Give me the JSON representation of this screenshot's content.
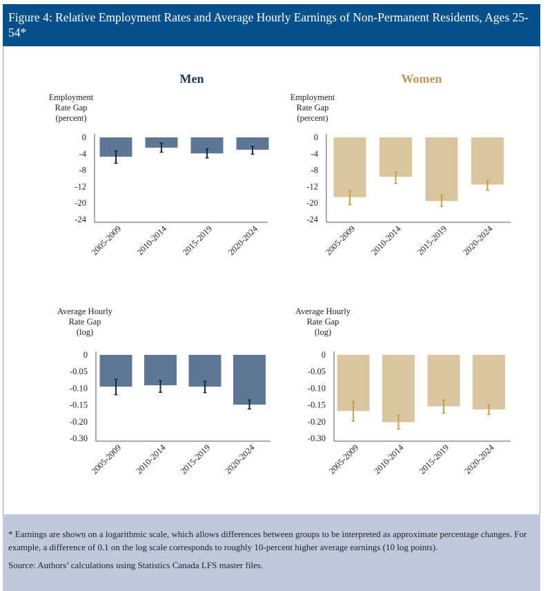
{
  "header": {
    "title": "Figure 4: Relative Employment Rates and Average Hourly Earnings of Non-Permanent Residents, Ages 25-54*"
  },
  "columns": {
    "men": "Men",
    "women": "Women"
  },
  "colors": {
    "header": "#04508a",
    "men_bar": "#5f7696",
    "men_err": "#0d2a4f",
    "women_bar": "#d9c69e",
    "women_err": "#c8a04a",
    "men_title": "#1a3358",
    "women_title": "#b8965a",
    "footer": "#c0c9db"
  },
  "chart_data": [
    {
      "id": "men_emp",
      "type": "bar",
      "title": "Men",
      "ylabel": [
        "Employment",
        "Rate Gap",
        "(percent)"
      ],
      "yticks": [
        "0",
        "-4",
        "-8",
        "-12",
        "-20",
        "-24"
      ],
      "ytick_values": [
        0,
        -4,
        -8,
        -12,
        -20,
        -24
      ],
      "categories": [
        "2005-2009",
        "2010-2014",
        "2015-2019",
        "2020-2024"
      ],
      "values": [
        -4.7,
        -2.5,
        -3.9,
        -3.0
      ],
      "error_low": [
        -6.3,
        -3.6,
        -5.0,
        -4.1
      ],
      "error_high": [
        -3.3,
        -1.4,
        -2.8,
        -2.2
      ]
    },
    {
      "id": "women_emp",
      "type": "bar",
      "title": "Women",
      "ylabel": [
        "Employment",
        "Rate Gap",
        "(percent)"
      ],
      "yticks": [
        "0",
        "-4",
        "-8",
        "-12",
        "-20",
        "-24"
      ],
      "ytick_values": [
        0,
        -4,
        -8,
        -12,
        -20,
        -24
      ],
      "categories": [
        "2005-2009",
        "2010-2014",
        "2015-2019",
        "2020-2024"
      ],
      "values": [
        -17.1,
        -9.6,
        -19.0,
        -11.5
      ],
      "error_low": [
        -20.4,
        -11.2,
        -20.8,
        -13.7
      ],
      "error_high": [
        -13.9,
        -8.5,
        -16.1,
        -10.5
      ]
    },
    {
      "id": "men_earn",
      "type": "bar",
      "title": "Men",
      "ylabel": [
        "Average Hourly",
        "Rate Gap",
        "(log)"
      ],
      "yticks": [
        "0",
        "-0.05",
        "-0.10",
        "-0.15",
        "-0.20",
        "-0.30"
      ],
      "ytick_values": [
        0,
        -0.05,
        -0.1,
        -0.15,
        -0.2,
        -0.3
      ],
      "categories": [
        "2005-2009",
        "2010-2014",
        "2015-2019",
        "2020-2024"
      ],
      "values": [
        -0.095,
        -0.091,
        -0.095,
        -0.149
      ],
      "error_low": [
        -0.119,
        -0.112,
        -0.113,
        -0.162
      ],
      "error_high": [
        -0.073,
        -0.077,
        -0.079,
        -0.135
      ]
    },
    {
      "id": "women_earn",
      "type": "bar",
      "title": "Women",
      "ylabel": [
        "Average Hourly",
        "Rate Gap",
        "(log)"
      ],
      "yticks": [
        "0",
        "-0.05",
        "-0.10",
        "-0.15",
        "-0.20",
        "-0.30"
      ],
      "ytick_values": [
        0,
        -0.05,
        -0.1,
        -0.15,
        -0.2,
        -0.3
      ],
      "categories": [
        "2005-2009",
        "2010-2014",
        "2015-2019",
        "2020-2024"
      ],
      "values": [
        -0.168,
        -0.203,
        -0.154,
        -0.163
      ],
      "error_low": [
        -0.198,
        -0.243,
        -0.175,
        -0.178
      ],
      "error_high": [
        -0.14,
        -0.18,
        -0.135,
        -0.149
      ]
    }
  ],
  "footer": {
    "note": "* Earnings are shown on a logarithmic scale, which allows differences between groups to be interpreted as approximate percentage changes. For example, a difference of 0.1 on the log scale corresponds to roughly 10-percent higher average earnings (10 log points).",
    "source": "Source: Authors’ calculations using Statistics Canada LFS master files."
  }
}
